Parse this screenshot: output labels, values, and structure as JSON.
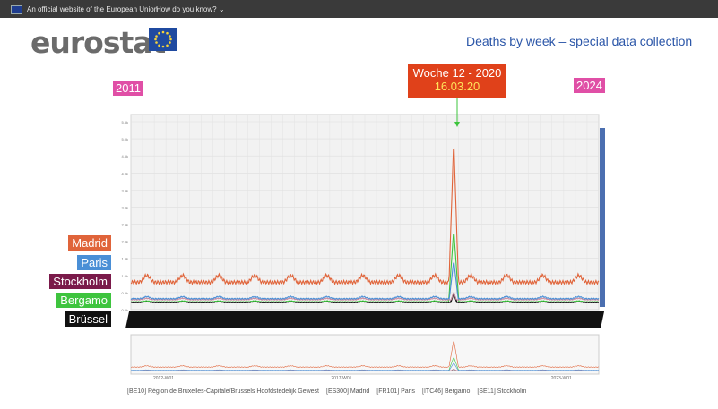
{
  "topbar": {
    "official_text": "An official website of the European Union",
    "how_text": "How do you know?"
  },
  "brand": {
    "logo_text": "eurostat"
  },
  "heading": "Deaths by week – special data collection",
  "years": {
    "start": "2011",
    "end": "2024"
  },
  "callout": {
    "line1": "Woche 12 - 2020",
    "line2": "16.03.20"
  },
  "cities": [
    {
      "label": "Madrid",
      "color": "#e0643a"
    },
    {
      "label": "Paris",
      "color": "#4a8fd6"
    },
    {
      "label": "Stockholm",
      "color": "#7a1a4a"
    },
    {
      "label": "Bergamo",
      "color": "#3ec43e"
    },
    {
      "label": "Brüssel",
      "color": "#111111"
    }
  ],
  "chart_data": {
    "type": "line",
    "title": "",
    "xlabel": "",
    "ylabel": "",
    "y_ticks": [
      "0.0k",
      "0.5k",
      "1.0k",
      "1.5k",
      "2.0k",
      "2.5k",
      "3.0k",
      "3.5k",
      "4.0k",
      "4.5k",
      "5.0k",
      "5.5k"
    ],
    "ylim": [
      0,
      5500
    ],
    "x_ticks": [
      "2012-W01",
      "2017-W01",
      "2023-W01"
    ],
    "grid": true,
    "series": [
      {
        "name": "[ES300] Madrid",
        "color": "#e0643a",
        "baseline": 800,
        "amplitude": 200,
        "peak": 5000
      },
      {
        "name": "[FR101] Paris",
        "color": "#4a8fd6",
        "baseline": 320,
        "amplitude": 60,
        "peak": 1450
      },
      {
        "name": "[SE11] Stockholm",
        "color": "#c98aa0",
        "baseline": 290,
        "amplitude": 40,
        "peak": 520
      },
      {
        "name": "[ITC46] Bergamo",
        "color": "#3ec43e",
        "baseline": 230,
        "amplitude": 25,
        "peak": 2350
      },
      {
        "name": "[BE10] Région de Bruxelles-Capitale/Brussels Hoofdstedelijk Gewest",
        "color": "#111111",
        "baseline": 210,
        "amplitude": 25,
        "peak": 480
      }
    ],
    "legend": [
      "[BE10] Région de Bruxelles-Capitale/Brussels Hoofdstedelijk Gewest",
      "[ES300] Madrid",
      "[FR101] Paris",
      "[ITC46] Bergamo",
      "[SE11] Stockholm"
    ]
  }
}
